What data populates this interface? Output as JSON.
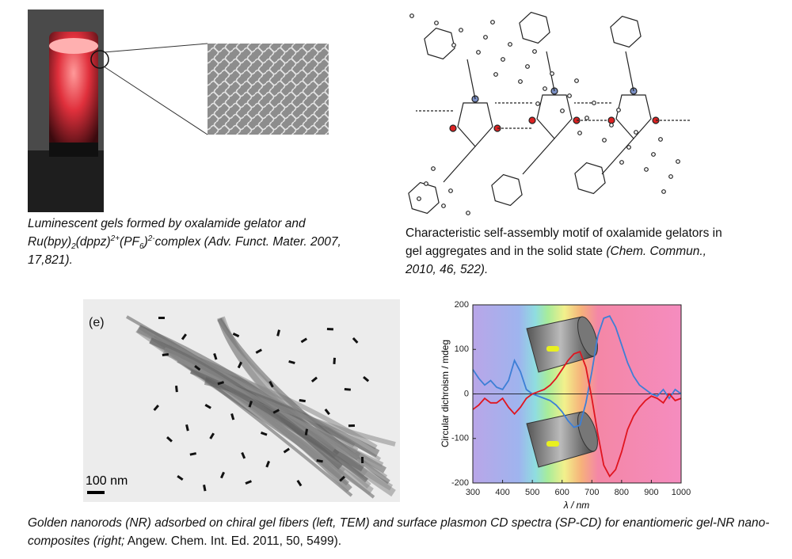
{
  "captions": {
    "top_left": [
      "Luminescent gels formed by oxalamide gelator and Ru(bpy)",
      "2",
      "(dppz)",
      "2+",
      "(PF",
      "6",
      ")",
      "2-",
      "complex (Adv. Funct. Mater. 2007, 17,821)."
    ],
    "top_right": [
      "Characteristic self-assembly motif of oxalamide gelators in gel aggregates and in the solid state",
      "(Chem. Commun., 2010, 46, 522)."
    ],
    "bottom": [
      "Golden nanorods (NR) adsorbed on chiral gel fibers (left, TEM) and surface plasmon CD spectra (SP-CD) for enantiomeric gel-NR nano-composites (right;",
      "Angew. Chem. Int. Ed. 2011, 50, 5499)."
    ]
  },
  "tem_image": {
    "panel_label": "(e)",
    "scale_bar": "100 nm"
  },
  "chart_data": {
    "type": "line",
    "xlabel": "λ / nm",
    "ylabel": "Circular dichroism / mdeg",
    "x": [
      300,
      320,
      340,
      360,
      380,
      400,
      420,
      440,
      460,
      480,
      500,
      520,
      540,
      560,
      580,
      600,
      620,
      640,
      660,
      680,
      700,
      720,
      740,
      760,
      780,
      800,
      820,
      840,
      860,
      880,
      900,
      920,
      940,
      960,
      980,
      1000
    ],
    "xlim": [
      300,
      1000
    ],
    "xticks": [
      300,
      400,
      500,
      600,
      700,
      800,
      900,
      1000
    ],
    "ylim": [
      -200,
      200
    ],
    "yticks": [
      200,
      100,
      0,
      -100,
      -200
    ],
    "series": [
      {
        "color": "#3d7fd6",
        "values": [
          55,
          35,
          20,
          30,
          15,
          10,
          30,
          75,
          50,
          10,
          0,
          -5,
          -10,
          -15,
          -25,
          -40,
          -60,
          -75,
          -70,
          -20,
          50,
          130,
          170,
          175,
          150,
          110,
          70,
          40,
          20,
          10,
          0,
          -5,
          10,
          -10,
          10,
          0
        ]
      },
      {
        "color": "#e0151f",
        "values": [
          -35,
          -25,
          -10,
          -20,
          -20,
          -10,
          -30,
          -45,
          -30,
          -10,
          0,
          5,
          10,
          20,
          35,
          55,
          75,
          90,
          95,
          60,
          -10,
          -90,
          -160,
          -185,
          -170,
          -130,
          -80,
          -50,
          -30,
          -15,
          -5,
          -10,
          -20,
          0,
          -15,
          -10
        ]
      }
    ]
  }
}
